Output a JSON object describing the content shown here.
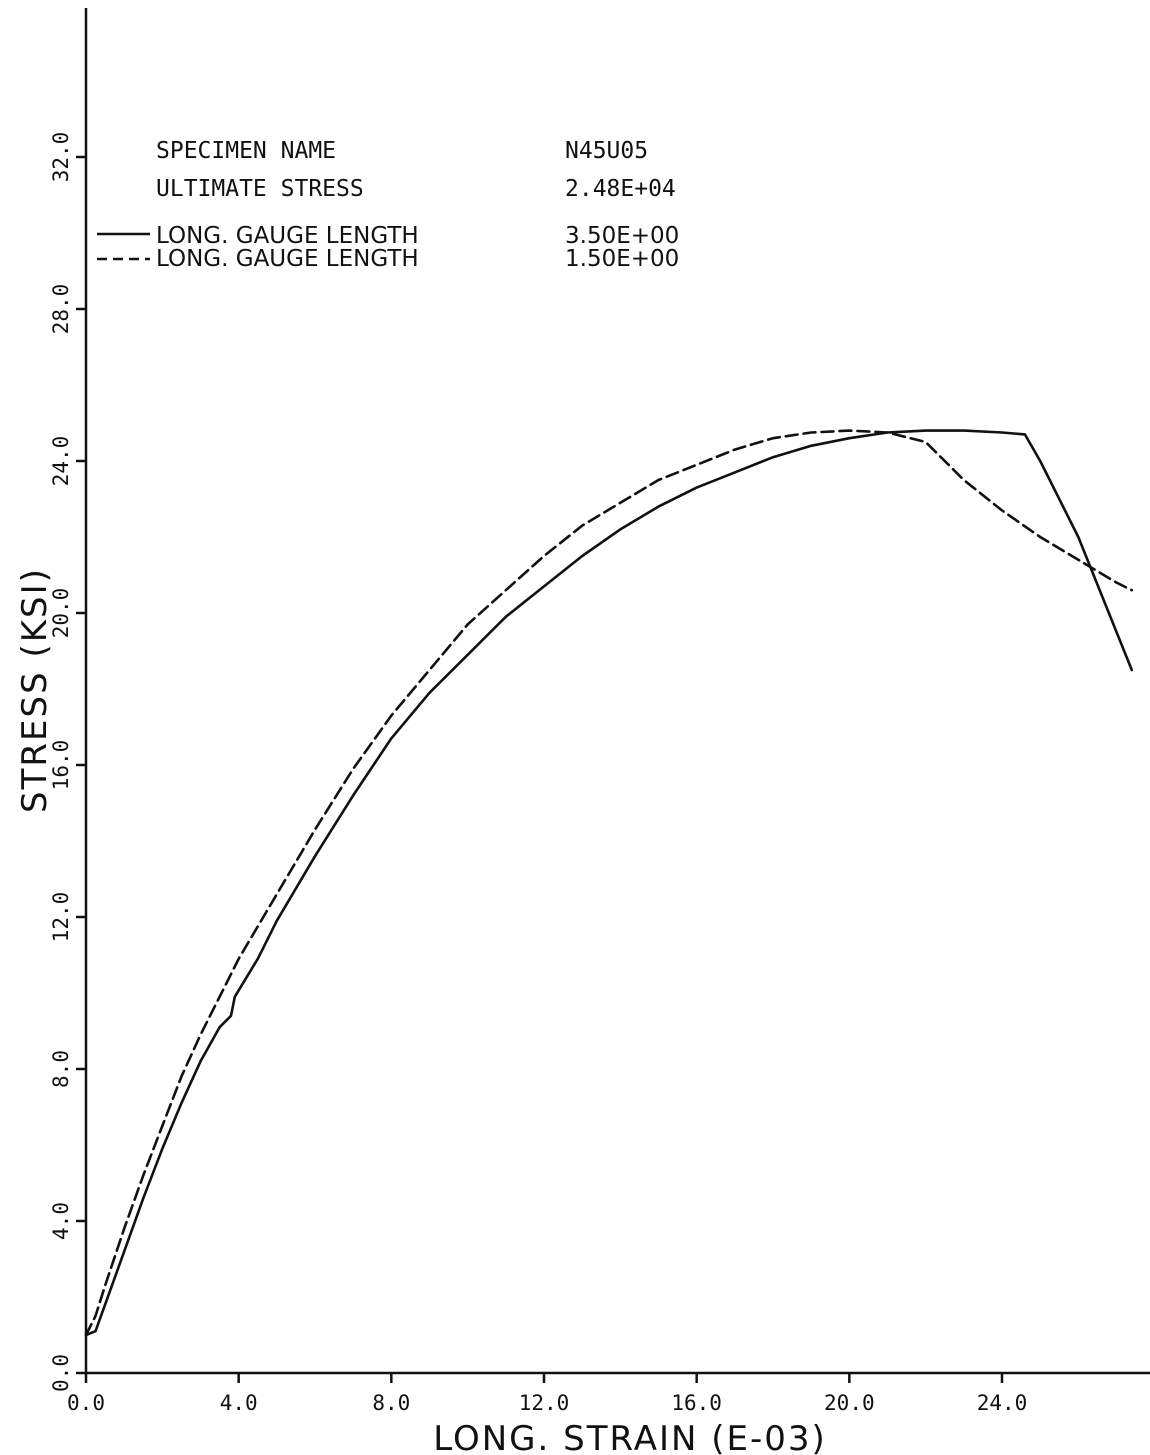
{
  "chart_data": {
    "type": "line",
    "title": "",
    "xlabel": "LONG. STRAIN (E-03)",
    "ylabel": "STRESS (KSI)",
    "xlim": [
      0,
      28
    ],
    "ylim": [
      0,
      36
    ],
    "x_ticks": [
      "0.0",
      "4.0",
      "8.0",
      "12.0",
      "16.0",
      "20.0",
      "24.0"
    ],
    "y_ticks": [
      "0.0",
      "4.0",
      "8.0",
      "12.0",
      "16.0",
      "20.0",
      "24.0",
      "28.0",
      "32.0"
    ],
    "grid": false,
    "legend_placement": "top-left",
    "info": {
      "specimen_label": "SPECIMEN NAME",
      "specimen_value": "N45U05",
      "ultimate_label": "ULTIMATE STRESS",
      "ultimate_value": "2.48E+04"
    },
    "series": [
      {
        "name": "LONG. GAUGE LENGTH",
        "gauge_value": "3.50E+00",
        "line_style": "solid",
        "color": "#111111",
        "points": [
          [
            0.0,
            1.0
          ],
          [
            0.25,
            1.1
          ],
          [
            0.5,
            1.8
          ],
          [
            1.0,
            3.2
          ],
          [
            1.5,
            4.6
          ],
          [
            2.0,
            5.9
          ],
          [
            2.5,
            7.1
          ],
          [
            3.0,
            8.2
          ],
          [
            3.5,
            9.1
          ],
          [
            3.8,
            9.4
          ],
          [
            3.9,
            9.9
          ],
          [
            4.5,
            10.9
          ],
          [
            5.0,
            11.9
          ],
          [
            6.0,
            13.6
          ],
          [
            7.0,
            15.2
          ],
          [
            8.0,
            16.7
          ],
          [
            9.0,
            17.9
          ],
          [
            10.0,
            18.9
          ],
          [
            11.0,
            19.9
          ],
          [
            12.0,
            20.7
          ],
          [
            13.0,
            21.5
          ],
          [
            14.0,
            22.2
          ],
          [
            15.0,
            22.8
          ],
          [
            16.0,
            23.3
          ],
          [
            17.0,
            23.7
          ],
          [
            18.0,
            24.1
          ],
          [
            19.0,
            24.4
          ],
          [
            20.0,
            24.6
          ],
          [
            21.0,
            24.75
          ],
          [
            22.0,
            24.8
          ],
          [
            23.0,
            24.8
          ],
          [
            24.0,
            24.75
          ],
          [
            24.6,
            24.7
          ],
          [
            25.0,
            24.0
          ],
          [
            26.0,
            22.0
          ],
          [
            27.0,
            19.5
          ],
          [
            27.4,
            18.5
          ]
        ]
      },
      {
        "name": "LONG. GAUGE LENGTH",
        "gauge_value": "1.50E+00",
        "line_style": "dashed",
        "color": "#111111",
        "points": [
          [
            0.0,
            1.0
          ],
          [
            0.25,
            1.5
          ],
          [
            0.5,
            2.3
          ],
          [
            1.0,
            3.8
          ],
          [
            1.5,
            5.2
          ],
          [
            2.0,
            6.5
          ],
          [
            2.5,
            7.8
          ],
          [
            3.0,
            8.9
          ],
          [
            3.5,
            9.9
          ],
          [
            4.0,
            10.9
          ],
          [
            5.0,
            12.6
          ],
          [
            6.0,
            14.3
          ],
          [
            7.0,
            15.9
          ],
          [
            8.0,
            17.3
          ],
          [
            9.0,
            18.5
          ],
          [
            10.0,
            19.7
          ],
          [
            11.0,
            20.6
          ],
          [
            12.0,
            21.5
          ],
          [
            13.0,
            22.3
          ],
          [
            14.0,
            22.9
          ],
          [
            15.0,
            23.5
          ],
          [
            16.0,
            23.9
          ],
          [
            17.0,
            24.3
          ],
          [
            18.0,
            24.6
          ],
          [
            19.0,
            24.75
          ],
          [
            20.0,
            24.8
          ],
          [
            21.0,
            24.75
          ],
          [
            22.0,
            24.5
          ],
          [
            23.0,
            23.5
          ],
          [
            24.0,
            22.7
          ],
          [
            25.0,
            22.0
          ],
          [
            26.0,
            21.4
          ],
          [
            27.0,
            20.8
          ],
          [
            27.4,
            20.6
          ]
        ]
      }
    ]
  }
}
